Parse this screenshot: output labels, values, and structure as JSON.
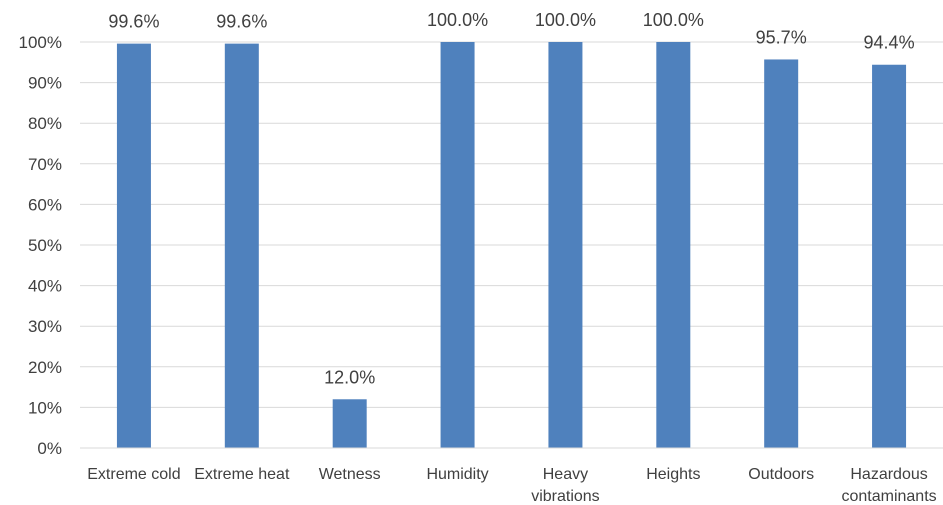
{
  "chart_data": {
    "type": "bar",
    "categories": [
      [
        "Extreme cold"
      ],
      [
        "Extreme heat"
      ],
      [
        "Wetness"
      ],
      [
        "Humidity"
      ],
      [
        "Heavy",
        "vibrations"
      ],
      [
        "Heights"
      ],
      [
        "Outdoors"
      ],
      [
        "Hazardous",
        "contaminants"
      ]
    ],
    "values": [
      99.6,
      99.6,
      12.0,
      100.0,
      100.0,
      100.0,
      95.7,
      94.4
    ],
    "data_labels": [
      "99.6%",
      "99.6%",
      "12.0%",
      "100.0%",
      "100.0%",
      "100.0%",
      "95.7%",
      "94.4%"
    ],
    "y_ticks": [
      "0%",
      "10%",
      "20%",
      "30%",
      "40%",
      "50%",
      "60%",
      "70%",
      "80%",
      "90%",
      "100%"
    ],
    "ylim": [
      0,
      100
    ],
    "grid": true,
    "bar_color": "#4f81bd",
    "grid_color": "#d9d9d9",
    "title": "",
    "xlabel": "",
    "ylabel": ""
  }
}
